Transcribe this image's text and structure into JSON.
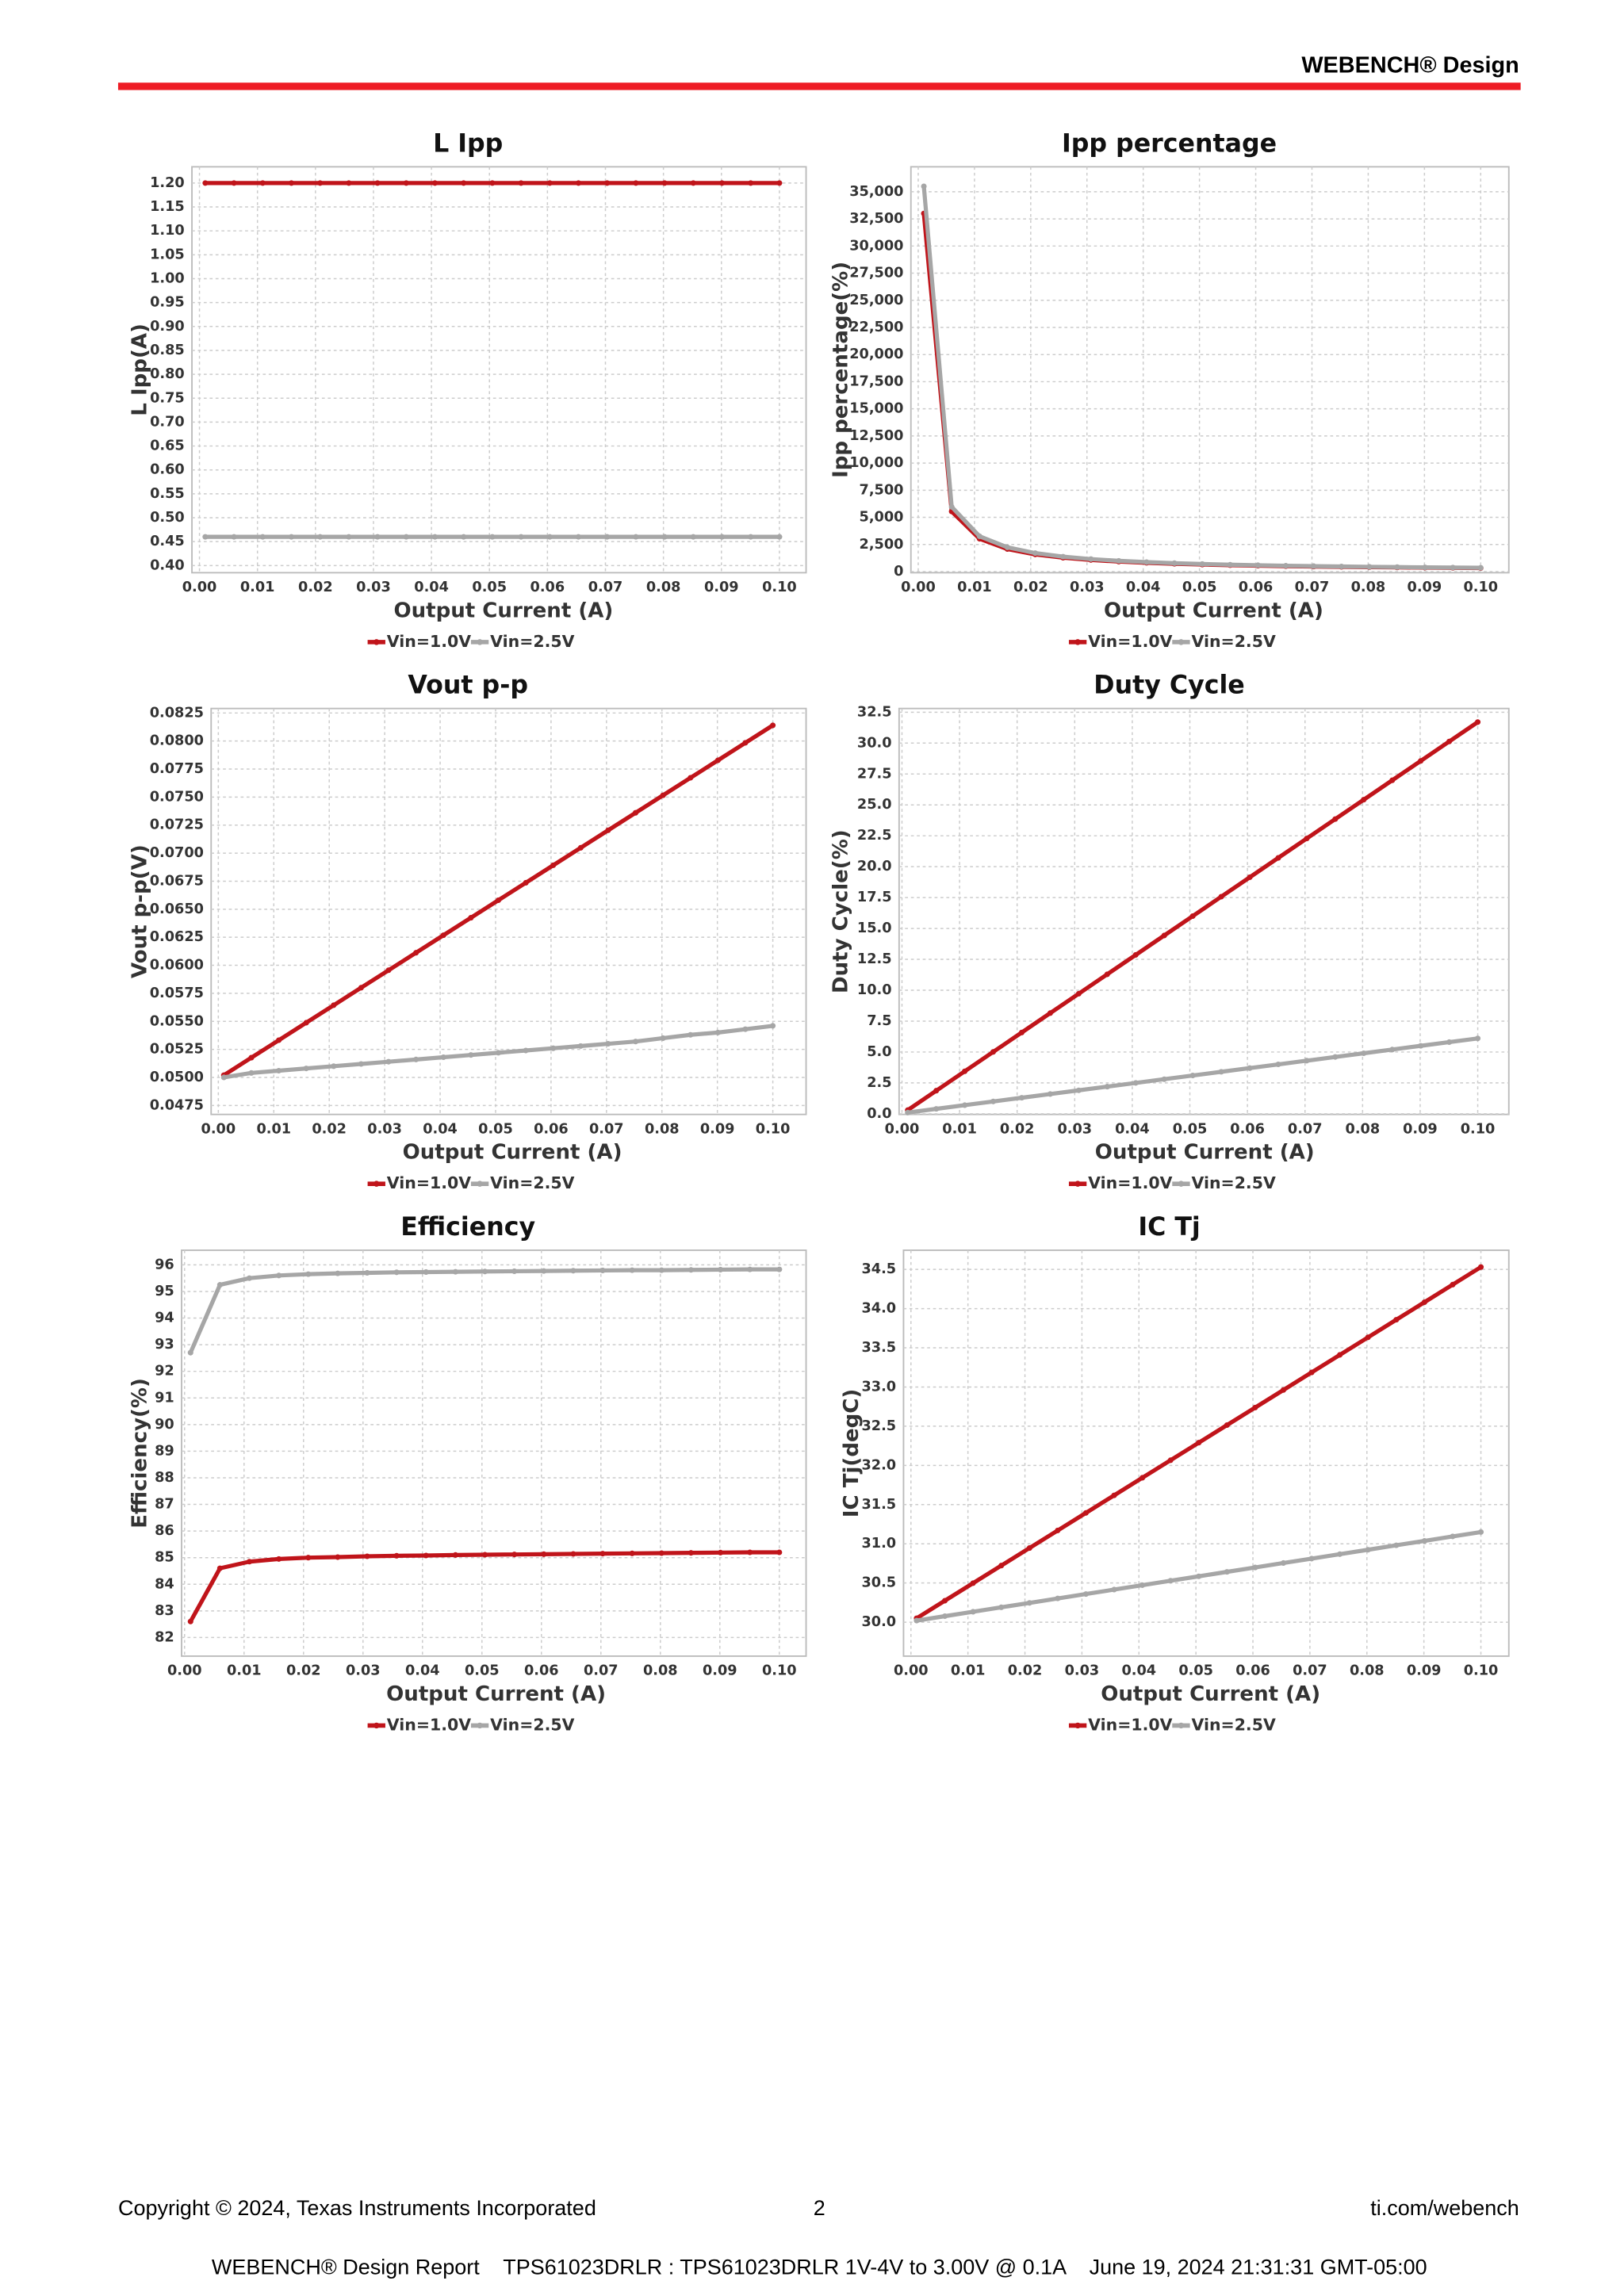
{
  "header": {
    "title": "WEBENCH® Design"
  },
  "footer": {
    "copyright": "Copyright © 2024, Texas Instruments Incorporated",
    "page": "2",
    "site": "ti.com/webench",
    "report": "WEBENCH® Design Report    TPS61023DRLR : TPS61023DRLR 1V-4V to 3.00V @ 0.1A    June 19, 2024 21:31:31 GMT-05:00"
  },
  "chart_data": [
    {
      "type": "line",
      "title": "L Ipp",
      "x_label": "Output Current (A)",
      "y_label": "L Ipp(A)",
      "grid": true,
      "legend": "bottom",
      "x": [
        0.001,
        0.00595,
        0.0109,
        0.01585,
        0.0208,
        0.02575,
        0.0307,
        0.03565,
        0.0406,
        0.04555,
        0.0505,
        0.05545,
        0.0604,
        0.06535,
        0.0703,
        0.07525,
        0.0802,
        0.08515,
        0.0901,
        0.09505,
        0.1
      ],
      "series": [
        {
          "name": "Vin=1.0V",
          "color": "#c0141a",
          "values": [
            1.2,
            1.2,
            1.2,
            1.2,
            1.2,
            1.2,
            1.2,
            1.2,
            1.2,
            1.2,
            1.2,
            1.2,
            1.2,
            1.2,
            1.2,
            1.2,
            1.2,
            1.2,
            1.2,
            1.2,
            1.2
          ]
        },
        {
          "name": "Vin=2.5V",
          "color": "#a6a6a6",
          "values": [
            0.46,
            0.46,
            0.46,
            0.46,
            0.46,
            0.46,
            0.46,
            0.46,
            0.46,
            0.46,
            0.46,
            0.46,
            0.46,
            0.46,
            0.46,
            0.46,
            0.46,
            0.46,
            0.46,
            0.46,
            0.46
          ]
        }
      ],
      "xlim": [
        -0.0013,
        0.1046
      ],
      "ylim": [
        0.385,
        1.234
      ],
      "xticks": [
        {
          "value": 0,
          "label": "0.00"
        },
        0.01,
        0.02,
        0.03,
        0.04,
        0.05,
        0.06,
        0.07,
        0.08,
        0.09,
        {
          "value": 0.1,
          "label": "0.10"
        }
      ],
      "yticks": [
        {
          "value": 0.4,
          "label": "0.40"
        },
        0.45,
        {
          "value": 0.5,
          "label": "0.50"
        },
        0.55,
        {
          "value": 0.6,
          "label": "0.60"
        },
        0.65,
        {
          "value": 0.7,
          "label": "0.70"
        },
        0.75,
        {
          "value": 0.8,
          "label": "0.80"
        },
        0.85,
        {
          "value": 0.9,
          "label": "0.90"
        },
        0.95,
        {
          "value": 1,
          "label": "1.00"
        },
        1.05,
        {
          "value": 1.1,
          "label": "1.10"
        },
        1.15,
        {
          "value": 1.2,
          "label": "1.20"
        }
      ]
    },
    {
      "type": "line",
      "title": "Ipp percentage",
      "x_label": "Output Current (A)",
      "y_label": "Ipp percentage(%)",
      "grid": true,
      "legend": "bottom",
      "x": [
        0.001,
        0.00595,
        0.0109,
        0.01585,
        0.0208,
        0.02575,
        0.0307,
        0.03565,
        0.0406,
        0.04555,
        0.0505,
        0.05545,
        0.0604,
        0.06535,
        0.0703,
        0.07525,
        0.0802,
        0.08515,
        0.0901,
        0.09505,
        0.1
      ],
      "series": [
        {
          "name": "Vin=1.0V",
          "color": "#c0141a",
          "values": [
            33000,
            5546,
            3028,
            2082,
            1587,
            1282,
            1075,
            926,
            813,
            724,
            653,
            595,
            546,
            505,
            469,
            439,
            411,
            388,
            366,
            347,
            330
          ]
        },
        {
          "name": "Vin=2.5V",
          "color": "#a6a6a6",
          "values": [
            35500,
            5966,
            3257,
            2240,
            1707,
            1379,
            1156,
            996,
            874,
            779,
            703,
            640,
            588,
            543,
            505,
            472,
            443,
            417,
            394,
            373,
            355
          ]
        }
      ],
      "xlim": [
        -0.0013,
        0.105
      ],
      "ylim": [
        -100,
        37300
      ],
      "xticks": [
        {
          "value": 0,
          "label": "0.00"
        },
        0.01,
        0.02,
        0.03,
        0.04,
        0.05,
        0.06,
        0.07,
        0.08,
        0.09,
        {
          "value": 0.1,
          "label": "0.10"
        }
      ],
      "yticks": [
        0,
        {
          "value": 2500,
          "label": "2,500"
        },
        {
          "value": 5000,
          "label": "5,000"
        },
        {
          "value": 7500,
          "label": "7,500"
        },
        {
          "value": 10000,
          "label": "10,000"
        },
        {
          "value": 12500,
          "label": "12,500"
        },
        {
          "value": 15000,
          "label": "15,000"
        },
        {
          "value": 17500,
          "label": "17,500"
        },
        {
          "value": 20000,
          "label": "20,000"
        },
        {
          "value": 22500,
          "label": "22,500"
        },
        {
          "value": 25000,
          "label": "25,000"
        },
        {
          "value": 27500,
          "label": "27,500"
        },
        {
          "value": 30000,
          "label": "30,000"
        },
        {
          "value": 32500,
          "label": "32,500"
        },
        {
          "value": 35000,
          "label": "35,000"
        }
      ]
    },
    {
      "type": "line",
      "title": "Vout p-p",
      "x_label": "Output Current (A)",
      "y_label": "Vout p-p(V)",
      "grid": true,
      "legend": "bottom",
      "x": [
        0.001,
        0.00595,
        0.0109,
        0.01585,
        0.0208,
        0.02575,
        0.0307,
        0.03565,
        0.0406,
        0.04555,
        0.0505,
        0.05545,
        0.0604,
        0.06535,
        0.0703,
        0.07525,
        0.0802,
        0.08515,
        0.0901,
        0.09505,
        0.1
      ],
      "series": [
        {
          "name": "Vin=1.0V",
          "color": "#c0141a",
          "values": [
            0.0502,
            0.05176,
            0.05332,
            0.05488,
            0.05644,
            0.058,
            0.05956,
            0.06112,
            0.06268,
            0.06424,
            0.0658,
            0.06736,
            0.06892,
            0.07048,
            0.07204,
            0.0736,
            0.07516,
            0.07672,
            0.07828,
            0.07984,
            0.0814
          ]
        },
        {
          "name": "Vin=2.5V",
          "color": "#a6a6a6",
          "values": [
            0.05,
            0.0504,
            0.0506,
            0.0508,
            0.051,
            0.0512,
            0.0514,
            0.0516,
            0.0518,
            0.052,
            0.0522,
            0.0524,
            0.0526,
            0.0528,
            0.053,
            0.0532,
            0.0535,
            0.0538,
            0.054,
            0.0543,
            0.0546
          ]
        }
      ],
      "xlim": [
        -0.0013,
        0.106
      ],
      "ylim": [
        0.0467,
        0.0829
      ],
      "xticks": [
        {
          "value": 0,
          "label": "0.00"
        },
        0.01,
        0.02,
        0.03,
        0.04,
        0.05,
        0.06,
        0.07,
        0.08,
        0.09,
        {
          "value": 0.1,
          "label": "0.10"
        }
      ],
      "yticks": [
        0.0475,
        {
          "value": 0.05,
          "label": "0.0500"
        },
        0.0525,
        {
          "value": 0.055,
          "label": "0.0550"
        },
        0.0575,
        {
          "value": 0.06,
          "label": "0.0600"
        },
        0.0625,
        {
          "value": 0.065,
          "label": "0.0650"
        },
        0.0675,
        {
          "value": 0.07,
          "label": "0.0700"
        },
        0.0725,
        {
          "value": 0.075,
          "label": "0.0750"
        },
        0.0775,
        {
          "value": 0.08,
          "label": "0.0800"
        },
        0.0825
      ]
    },
    {
      "type": "line",
      "title": "Duty Cycle",
      "x_label": "Output Current (A)",
      "y_label": "Duty Cycle(%)",
      "grid": true,
      "legend": "bottom",
      "x": [
        0.001,
        0.00595,
        0.0109,
        0.01585,
        0.0208,
        0.02575,
        0.0307,
        0.03565,
        0.0406,
        0.04555,
        0.0505,
        0.05545,
        0.0604,
        0.06535,
        0.0703,
        0.07525,
        0.0802,
        0.08515,
        0.0901,
        0.09505,
        0.1
      ],
      "series": [
        {
          "name": "Vin=1.0V",
          "color": "#c0141a",
          "values": [
            0.3,
            1.87,
            3.44,
            5.01,
            6.58,
            8.15,
            9.72,
            11.29,
            12.86,
            14.43,
            16.0,
            17.57,
            19.14,
            20.71,
            22.28,
            23.85,
            25.42,
            26.99,
            28.56,
            30.13,
            31.7
          ]
        },
        {
          "name": "Vin=2.5V",
          "color": "#a6a6a6",
          "values": [
            0.1,
            0.4,
            0.7,
            1.0,
            1.3,
            1.6,
            1.9,
            2.2,
            2.5,
            2.8,
            3.1,
            3.4,
            3.7,
            4.0,
            4.3,
            4.6,
            4.9,
            5.2,
            5.5,
            5.8,
            6.1
          ]
        }
      ],
      "xlim": [
        -0.0005,
        0.1054
      ],
      "ylim": [
        -0.05,
        32.8
      ],
      "xticks": [
        {
          "value": 0,
          "label": "0.00"
        },
        0.01,
        0.02,
        0.03,
        0.04,
        0.05,
        0.06,
        0.07,
        0.08,
        0.09,
        {
          "value": 0.1,
          "label": "0.10"
        }
      ],
      "yticks": [
        {
          "value": 0,
          "label": "0.0"
        },
        2.5,
        {
          "value": 5,
          "label": "5.0"
        },
        7.5,
        {
          "value": 10,
          "label": "10.0"
        },
        12.5,
        {
          "value": 15,
          "label": "15.0"
        },
        17.5,
        {
          "value": 20,
          "label": "20.0"
        },
        22.5,
        {
          "value": 25,
          "label": "25.0"
        },
        27.5,
        {
          "value": 30,
          "label": "30.0"
        },
        32.5
      ]
    },
    {
      "type": "line",
      "title": "Efficiency",
      "x_label": "Output Current (A)",
      "y_label": "Efficiency(%)",
      "grid": true,
      "legend": "bottom",
      "x": [
        0.001,
        0.00595,
        0.0109,
        0.01585,
        0.0208,
        0.02575,
        0.0307,
        0.03565,
        0.0406,
        0.04555,
        0.0505,
        0.05545,
        0.0604,
        0.06535,
        0.0703,
        0.07525,
        0.0802,
        0.08515,
        0.0901,
        0.09505,
        0.1
      ],
      "series": [
        {
          "name": "Vin=1.0V",
          "color": "#c0141a",
          "values": [
            82.6,
            84.6,
            84.85,
            84.95,
            85.0,
            85.02,
            85.05,
            85.07,
            85.08,
            85.1,
            85.11,
            85.12,
            85.13,
            85.14,
            85.15,
            85.16,
            85.17,
            85.18,
            85.19,
            85.2,
            85.2
          ]
        },
        {
          "name": "Vin=2.5V",
          "color": "#a6a6a6",
          "values": [
            92.7,
            95.25,
            95.5,
            95.6,
            95.65,
            95.68,
            95.7,
            95.72,
            95.73,
            95.74,
            95.75,
            95.76,
            95.77,
            95.78,
            95.79,
            95.8,
            95.8,
            95.81,
            95.82,
            95.83,
            95.83
          ]
        }
      ],
      "xlim": [
        -0.0005,
        0.1045
      ],
      "ylim": [
        81.3,
        96.55
      ],
      "xticks": [
        {
          "value": 0,
          "label": "0.00"
        },
        0.01,
        0.02,
        0.03,
        0.04,
        0.05,
        0.06,
        0.07,
        0.08,
        0.09,
        {
          "value": 0.1,
          "label": "0.10"
        }
      ],
      "yticks": [
        82,
        83,
        84,
        85,
        86,
        87,
        88,
        89,
        90,
        91,
        92,
        93,
        94,
        95,
        96
      ]
    },
    {
      "type": "line",
      "title": "IC Tj",
      "x_label": "Output Current (A)",
      "y_label": "IC Tj(degC)",
      "grid": true,
      "legend": "bottom",
      "x": [
        0.001,
        0.00595,
        0.0109,
        0.01585,
        0.0208,
        0.02575,
        0.0307,
        0.03565,
        0.0406,
        0.04555,
        0.0505,
        0.05545,
        0.0604,
        0.06535,
        0.0703,
        0.07525,
        0.0802,
        0.08515,
        0.0901,
        0.09505,
        0.1
      ],
      "series": [
        {
          "name": "Vin=1.0V",
          "color": "#c0141a",
          "values": [
            30.05,
            30.274,
            30.498,
            30.722,
            30.946,
            31.17,
            31.394,
            31.618,
            31.842,
            32.066,
            32.29,
            32.514,
            32.738,
            32.962,
            33.186,
            33.41,
            33.634,
            33.858,
            34.082,
            34.306,
            34.53
          ]
        },
        {
          "name": "Vin=2.5V",
          "color": "#a6a6a6",
          "values": [
            30.02,
            30.077,
            30.133,
            30.19,
            30.246,
            30.303,
            30.359,
            30.416,
            30.472,
            30.529,
            30.585,
            30.642,
            30.698,
            30.755,
            30.811,
            30.868,
            30.924,
            30.981,
            31.037,
            31.094,
            31.15
          ]
        }
      ],
      "xlim": [
        -0.0013,
        0.1049
      ],
      "ylim": [
        29.567,
        34.745
      ],
      "xticks": [
        {
          "value": 0,
          "label": "0.00"
        },
        0.01,
        0.02,
        0.03,
        0.04,
        0.05,
        0.06,
        0.07,
        0.08,
        0.09,
        {
          "value": 0.1,
          "label": "0.10"
        }
      ],
      "yticks": [
        {
          "value": 30,
          "label": "30.0"
        },
        30.5,
        {
          "value": 31,
          "label": "31.0"
        },
        31.5,
        {
          "value": 32,
          "label": "32.0"
        },
        32.5,
        {
          "value": 33,
          "label": "33.0"
        },
        33.5,
        {
          "value": 34,
          "label": "34.0"
        },
        34.5
      ]
    }
  ]
}
